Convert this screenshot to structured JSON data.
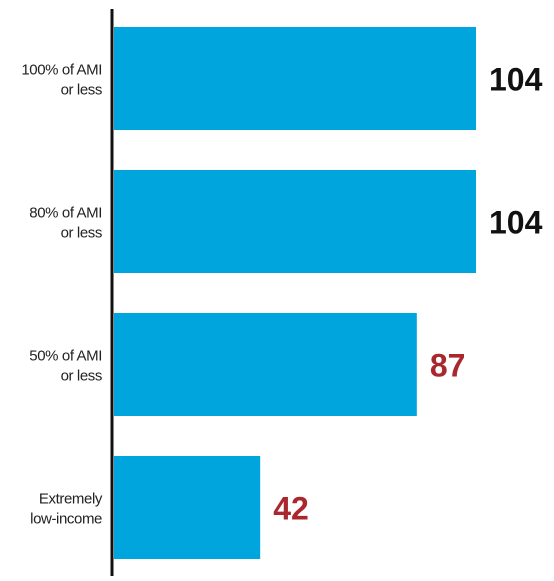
{
  "chart_data": {
    "type": "bar",
    "orientation": "horizontal",
    "categories": [
      [
        "100% of AMI",
        "or less"
      ],
      [
        "80% of AMI",
        "or less"
      ],
      [
        "50% of AMI",
        "or less"
      ],
      [
        "Extremely",
        "low-income"
      ]
    ],
    "values": [
      104,
      104,
      87,
      42
    ],
    "data_labels": [
      "104",
      "104",
      "87",
      "42"
    ],
    "label_colors": [
      "#111111",
      "#111111",
      "#a8282d",
      "#a8282d"
    ],
    "bar_color": "#00a5de",
    "axis_color": "#111111",
    "title": "",
    "xlabel": "",
    "ylabel": "",
    "xlim": [
      0,
      104
    ],
    "grid": false,
    "legend": "none"
  }
}
